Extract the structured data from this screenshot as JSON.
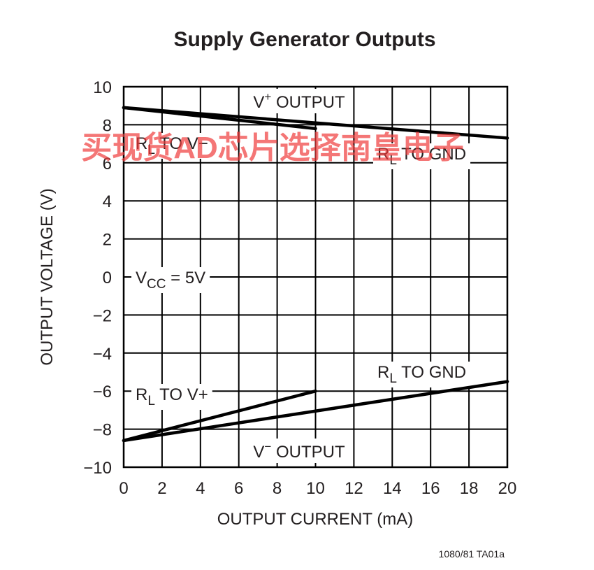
{
  "chart_data": {
    "type": "line",
    "title": "Supply Generator Outputs",
    "x_label": "OUTPUT CURRENT (mA)",
    "y_label": "OUTPUT VOLTAGE (V)",
    "xlim": [
      0,
      20
    ],
    "xticks": [
      0,
      2,
      4,
      6,
      8,
      10,
      12,
      14,
      16,
      18,
      20
    ],
    "ylim": [
      -10,
      10
    ],
    "yticks": [
      {
        "value": -10,
        "label": "−10"
      },
      {
        "value": -8,
        "label": "−8"
      },
      {
        "value": -6,
        "label": "−6"
      },
      {
        "value": -4,
        "label": "−4"
      },
      {
        "value": -2,
        "label": "−2"
      },
      0,
      2,
      4,
      6,
      8,
      10
    ],
    "grid": true,
    "series": [
      {
        "x": [
          0,
          20
        ],
        "values": [
          8.9,
          7.3
        ],
        "color": "#000000"
      },
      {
        "x": [
          0,
          10
        ],
        "values": [
          8.9,
          7.8
        ],
        "color": "#000000"
      },
      {
        "x": [
          0,
          20
        ],
        "values": [
          -8.6,
          -5.5
        ],
        "color": "#000000"
      },
      {
        "x": [
          0,
          10
        ],
        "values": [
          -8.6,
          -6.0
        ],
        "color": "#000000"
      }
    ],
    "annotations": [
      {
        "base": "V",
        "sup": "+",
        "rest": " OUTPUT"
      },
      {
        "base": "R",
        "sub": "L",
        "rest": " TO V−"
      },
      {
        "base": "R",
        "sub": "L",
        "rest": " TO GND"
      },
      {
        "base": "V",
        "sub": "CC",
        "rest": " = 5V"
      },
      {
        "base": "R",
        "sub": "L",
        "rest": " TO GND"
      },
      {
        "base": "R",
        "sub": "L",
        "rest": " TO V+"
      },
      {
        "base": "V",
        "sup": "−",
        "rest": " OUTPUT"
      }
    ],
    "watermark": "买现货AD芯片选择南皇电子",
    "footnote": "1080/81 TA01a"
  }
}
